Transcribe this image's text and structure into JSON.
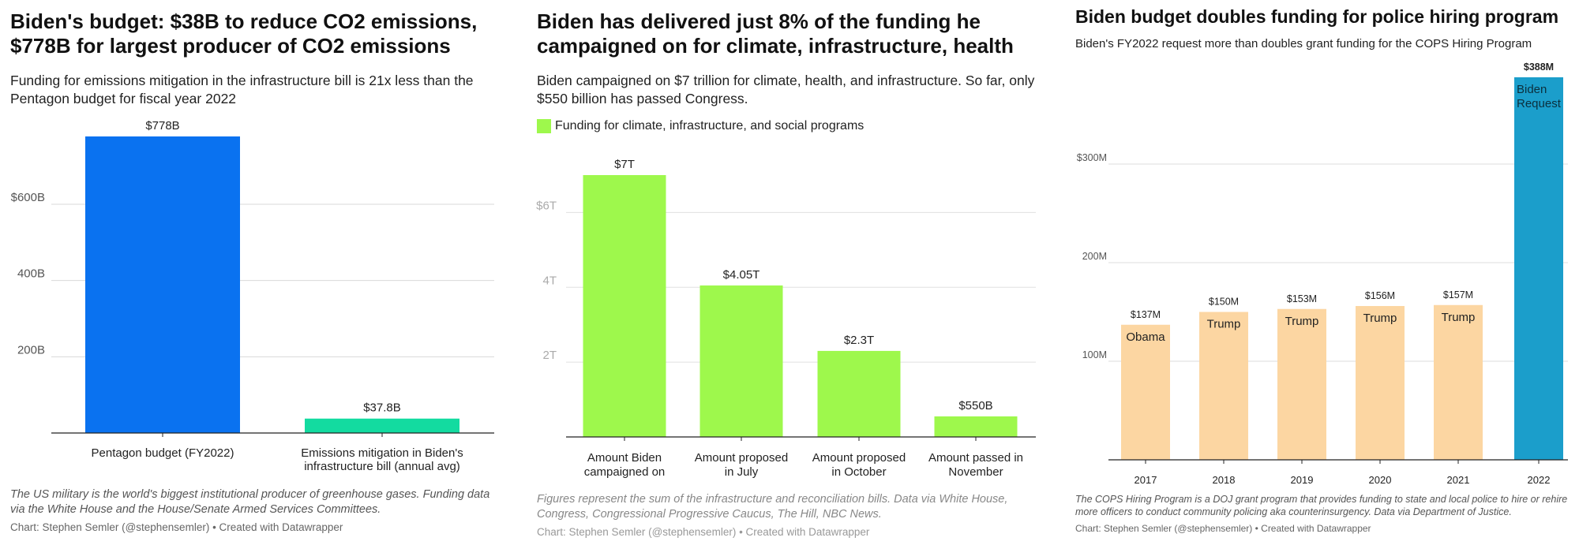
{
  "chart_data": [
    {
      "type": "bar",
      "title": "Biden's budget: $38B to reduce CO2 emissions, $778B for largest producer of CO2 emissions",
      "subtitle": "Funding for emissions mitigation in the infrastructure bill is 21x less than the Pentagon budget for fiscal year 2022",
      "categories": [
        [
          "Pentagon budget (FY2022)"
        ],
        [
          "Emissions mitigation in Biden's",
          "infrastructure bill (annual avg)"
        ]
      ],
      "values": [
        778,
        37.8
      ],
      "value_labels": [
        "$778B",
        "$37.8B"
      ],
      "colors": [
        "#0a72f0",
        "#13dba0"
      ],
      "yticks": [
        {
          "v": 200,
          "label": "200B"
        },
        {
          "v": 400,
          "label": "400B"
        },
        {
          "v": 600,
          "label": "$600B"
        }
      ],
      "ylim": [
        0,
        778
      ],
      "grid": true,
      "note": "The US military is the world's biggest institutional producer of greenhouse gases. Funding data via the White House and the House/Senate Armed Services Committees.",
      "credit": "Chart: Stephen Semler (@stephensemler) • Created with Datawrapper"
    },
    {
      "type": "bar",
      "title": "Biden has delivered just 8% of the funding he campaigned on for climate, infrastructure, health",
      "subtitle": "Biden campaigned on $7 trillion for climate, health, and infrastructure. So far, only $550 billion has passed Congress.",
      "legend": "Funding for climate, infrastructure, and social programs",
      "categories": [
        [
          "Amount Biden",
          "campaigned on"
        ],
        [
          "Amount proposed",
          "in July"
        ],
        [
          "Amount proposed",
          "in October"
        ],
        [
          "Amount passed in",
          "November"
        ]
      ],
      "values": [
        7,
        4.05,
        2.3,
        0.55
      ],
      "value_labels": [
        "$7T",
        "$4.05T",
        "$2.3T",
        "$550B"
      ],
      "colors": [
        "#9ef84c",
        "#9ef84c",
        "#9ef84c",
        "#9ef84c"
      ],
      "yticks": [
        {
          "v": 2,
          "label": "2T"
        },
        {
          "v": 4,
          "label": "4T"
        },
        {
          "v": 6,
          "label": "$6T"
        }
      ],
      "ylim": [
        0,
        7
      ],
      "grid": true,
      "note": "Figures represent the sum of the infrastructure and reconciliation bills. Data via White House, Congress, Congressional Progressive Caucus, The Hill, NBC News.",
      "credit": "Chart: Stephen Semler (@stephensemler) • Created with Datawrapper"
    },
    {
      "type": "bar",
      "title": "Biden budget doubles funding for police hiring program",
      "subtitle": "Biden's FY2022 request more than doubles grant funding for the COPS Hiring Program",
      "categories": [
        [
          "2017"
        ],
        [
          "2018"
        ],
        [
          "2019"
        ],
        [
          "2020"
        ],
        [
          "2021"
        ],
        [
          "2022"
        ]
      ],
      "values": [
        137,
        150,
        153,
        156,
        157,
        388
      ],
      "value_labels": [
        "$137M",
        "$150M",
        "$153M",
        "$156M",
        "$157M",
        "$388M"
      ],
      "bar_labels": [
        [
          "Obama"
        ],
        [
          "Trump"
        ],
        [
          "Trump"
        ],
        [
          "Trump"
        ],
        [
          "Trump"
        ],
        [
          "Biden",
          "Request"
        ]
      ],
      "colors": [
        "#fcd6a2",
        "#fcd6a2",
        "#fcd6a2",
        "#fcd6a2",
        "#fcd6a2",
        "#1b9ecb"
      ],
      "yticks": [
        {
          "v": 100,
          "label": "100M"
        },
        {
          "v": 200,
          "label": "200M"
        },
        {
          "v": 300,
          "label": "$300M"
        }
      ],
      "ylim": [
        0,
        388
      ],
      "grid": true,
      "note": "The COPS Hiring Program is a DOJ grant program that provides funding to state and local police to hire or rehire more officers to conduct community policing aka counterinsurgency. Data via Department of Justice.",
      "credit": "Chart: Stephen Semler (@stephensemler) • Created with Datawrapper"
    }
  ]
}
